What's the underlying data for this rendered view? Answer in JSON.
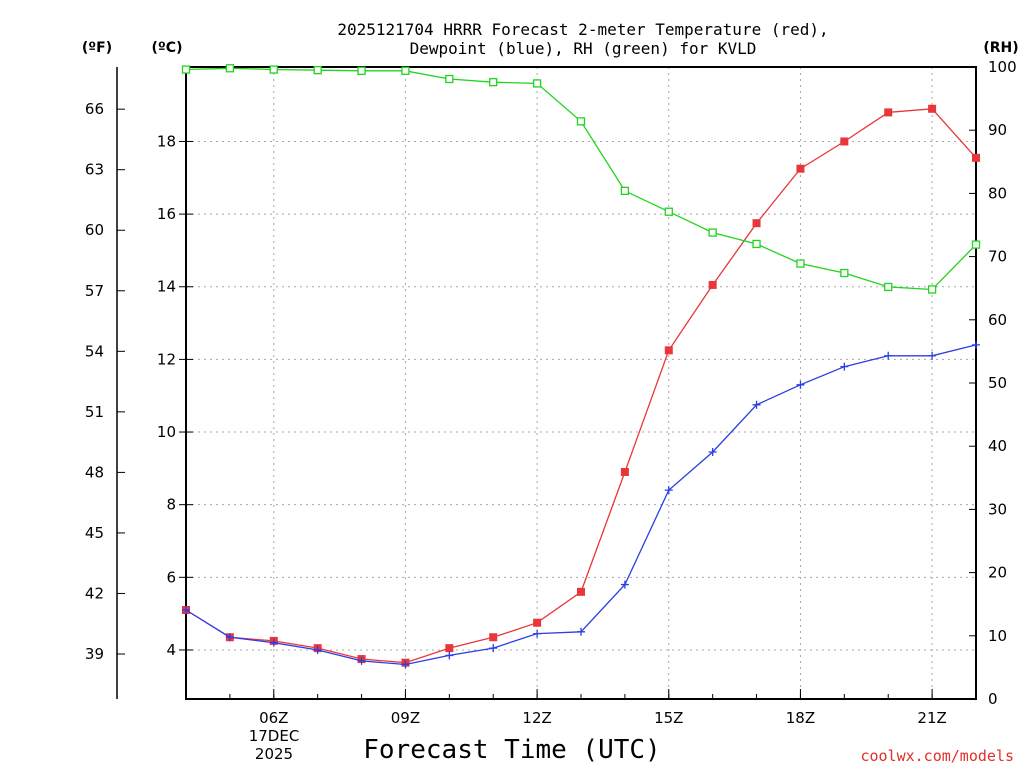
{
  "chart_data": {
    "type": "line",
    "title_line1": "2025121704 HRRR Forecast 2-meter Temperature (red),",
    "title_line2": "Dewpoint (blue), RH (green) for KVLD",
    "xlabel": "Forecast Time (UTC)",
    "date_label_day": "17DEC",
    "date_label_year": "2025",
    "credit": "coolwx.com/models",
    "unit_f": "(ºF)",
    "unit_c": "(ºC)",
    "unit_rh": "(RH)",
    "x_hours": [
      4,
      5,
      6,
      7,
      8,
      9,
      10,
      11,
      12,
      13,
      14,
      15,
      16,
      17,
      18,
      19,
      20,
      21,
      22
    ],
    "xlim": [
      4,
      22
    ],
    "x_ticks": [
      {
        "hour": 6,
        "label": "06Z"
      },
      {
        "hour": 9,
        "label": "09Z"
      },
      {
        "hour": 12,
        "label": "12Z"
      },
      {
        "hour": 15,
        "label": "15Z"
      },
      {
        "hour": 18,
        "label": "18Z"
      },
      {
        "hour": 21,
        "label": "21Z"
      }
    ],
    "ylim_c": [
      2.65,
      20.05
    ],
    "c_ticks": [
      4,
      6,
      8,
      10,
      12,
      14,
      16,
      18
    ],
    "f_ticks": [
      39,
      42,
      45,
      48,
      51,
      54,
      57,
      60,
      63,
      66
    ],
    "ylim_rh": [
      0,
      100
    ],
    "rh_ticks": [
      0,
      10,
      20,
      30,
      40,
      50,
      60,
      70,
      80,
      90,
      100
    ],
    "series": [
      {
        "name": "Temperature",
        "color": "#e8373a",
        "marker": "filled-square",
        "axis": "c",
        "values": [
          5.1,
          4.35,
          4.25,
          4.05,
          3.75,
          3.65,
          4.05,
          4.35,
          4.75,
          5.6,
          8.9,
          12.25,
          14.05,
          15.75,
          17.25,
          18.0,
          18.8,
          18.9,
          17.55
        ]
      },
      {
        "name": "Dewpoint",
        "color": "#2b3ee6",
        "marker": "plus",
        "axis": "c",
        "values": [
          5.1,
          4.35,
          4.2,
          4.0,
          3.7,
          3.6,
          3.85,
          4.05,
          4.45,
          4.5,
          5.8,
          8.4,
          9.45,
          10.75,
          11.3,
          11.8,
          12.1,
          12.1,
          12.4
        ]
      },
      {
        "name": "RH",
        "color": "#22d41e",
        "marker": "open-square",
        "axis": "rh",
        "values": [
          99.6,
          99.8,
          99.6,
          99.5,
          99.4,
          99.4,
          98.1,
          97.6,
          97.4,
          91.4,
          80.4,
          77.1,
          73.8,
          72.0,
          68.9,
          67.4,
          65.2,
          64.8,
          71.9
        ]
      }
    ]
  }
}
